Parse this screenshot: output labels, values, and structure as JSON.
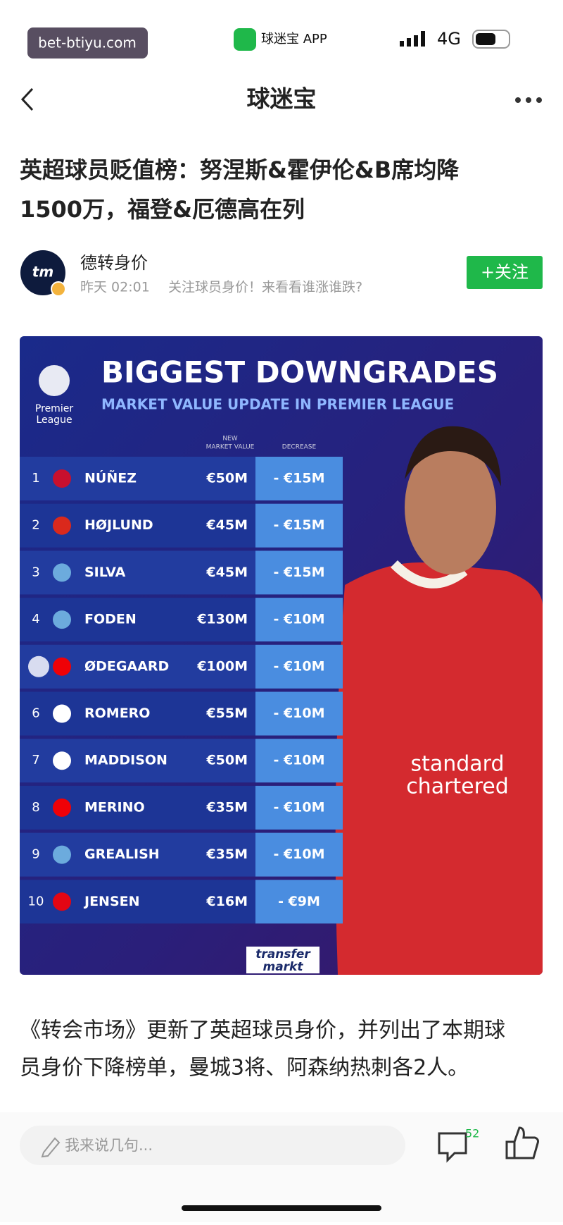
{
  "status_bar": {
    "watermark": "bet-btiyu.com",
    "app": "球迷宝 APP",
    "network": "4G"
  },
  "nav": {
    "title": "球迷宝"
  },
  "article": {
    "title_lines": [
      "英超球员贬值榜：努涅斯&霍伊伦&B席均降",
      "1500万，福登&厄德高在列"
    ],
    "author": {
      "avatar": "tm",
      "name": "德转身价",
      "time": "昨天 02:01",
      "bio": "关注球员身价！来看看谁涨谁跌?",
      "follow": "+关注"
    },
    "image": {
      "league": [
        "Premier",
        "League"
      ],
      "title": "BIGGEST DOWNGRADES",
      "subtitle": "MARKET VALUE UPDATE IN PREMIER LEAGUE",
      "headers": [
        [
          "NEW",
          "MARKET VALUE"
        ],
        "DECREASE"
      ],
      "rows": [
        [
          "1",
          "NÚÑEZ",
          "€50M",
          "- €15M"
        ],
        [
          "2",
          "HØJLUND",
          "€45M",
          "- €15M"
        ],
        [
          "3",
          "SILVA",
          "€45M",
          "- €15M"
        ],
        [
          "4",
          "FODEN",
          "€130M",
          "- €10M"
        ],
        [
          null,
          "ØDEGAARD",
          "€100M",
          "- €10M"
        ],
        [
          "6",
          "ROMERO",
          "€55M",
          "- €10M"
        ],
        [
          "7",
          "MADDISON",
          "€50M",
          "- €10M"
        ],
        [
          "8",
          "MERINO",
          "€35M",
          "- €10M"
        ],
        [
          "9",
          "GREALISH",
          "€35M",
          "- €10M"
        ],
        [
          "10",
          "JENSEN",
          "€16M",
          "- €9M"
        ]
      ],
      "sponsor": [
        "standard",
        "chartered"
      ],
      "brand": [
        "transfer",
        "markt"
      ]
    },
    "body_lines": [
      "《转会市场》更新了英超球员身价，并列出了本期球",
      "员身价下降榜单，曼城3将、阿森纳热刺各2人。"
    ]
  },
  "bottom_bar": {
    "placeholder": "我来说几句...",
    "comments": "52"
  }
}
